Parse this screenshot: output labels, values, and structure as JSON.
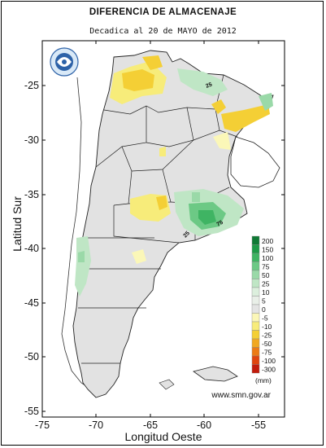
{
  "title": "DIFERENCIA DE ALMACENAJE",
  "subtitle": "Decadica al 20 de MAYO de 2012",
  "axes": {
    "xlabel": "Longitud Oeste",
    "ylabel": "Latitud Sur",
    "xticks": [
      "-75",
      "-70",
      "-65",
      "-60",
      "-55"
    ],
    "yticks": [
      "-25",
      "-30",
      "-35",
      "-40",
      "-45",
      "-50",
      "-55"
    ],
    "xlim": [
      -75,
      -53
    ],
    "ylim": [
      -55,
      -21
    ]
  },
  "legend": {
    "unit": "(mm)",
    "classes": [
      {
        "label": "200",
        "color": "#0f7a35"
      },
      {
        "label": "150",
        "color": "#1d9a47"
      },
      {
        "label": "100",
        "color": "#3fb463"
      },
      {
        "label": "75",
        "color": "#6cc985"
      },
      {
        "label": "50",
        "color": "#9ad9a8"
      },
      {
        "label": "25",
        "color": "#bfe6c5"
      },
      {
        "label": "10",
        "color": "#dcefdd"
      },
      {
        "label": "5",
        "color": "#e9efe8"
      },
      {
        "label": "0",
        "color": "#e4e4e4"
      },
      {
        "label": "-5",
        "color": "#fbf7b8"
      },
      {
        "label": "-10",
        "color": "#f7ec7a"
      },
      {
        "label": "-25",
        "color": "#f4cf35"
      },
      {
        "label": "-50",
        "color": "#f1a821"
      },
      {
        "label": "-75",
        "color": "#ec7b16"
      },
      {
        "label": "-100",
        "color": "#e0450f"
      },
      {
        "label": "-300",
        "color": "#c21c0c"
      }
    ]
  },
  "contour_labels": [
    "25",
    "75",
    "25"
  ],
  "source": "www.smn.gov.ar",
  "logo_icon": "smn-globe-logo",
  "colors": {
    "land": "#e2e2e2",
    "outside": "#ffffff",
    "boundary": "#222222"
  }
}
